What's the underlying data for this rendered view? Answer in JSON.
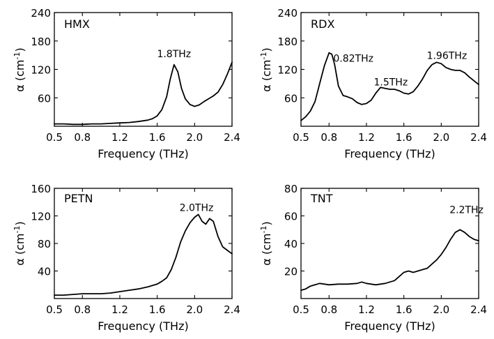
{
  "chart_data": [
    {
      "type": "line",
      "label": "HMX",
      "xlabel": "Frequency (THz)",
      "ylabel_main": "α (cm",
      "ylabel_exp": "-1",
      "ylabel_close": ")",
      "xlim": [
        0.5,
        2.4
      ],
      "ylim": [
        0,
        240
      ],
      "xticks": [
        0.5,
        0.8,
        1.2,
        1.6,
        2.0,
        2.4
      ],
      "xtick_labels": [
        "0.5",
        "0.8",
        "1.2",
        "1.6",
        "2.0",
        "2.4"
      ],
      "yticks": [
        60,
        120,
        180,
        240
      ],
      "ytick_labels": [
        "60",
        "120",
        "180",
        "240"
      ],
      "annotations": [
        {
          "text": "1.8THz",
          "x": 1.78,
          "y": 146
        }
      ],
      "x": [
        0.5,
        0.6,
        0.7,
        0.8,
        0.9,
        1.0,
        1.1,
        1.2,
        1.3,
        1.4,
        1.5,
        1.55,
        1.6,
        1.65,
        1.7,
        1.74,
        1.78,
        1.82,
        1.86,
        1.9,
        1.95,
        2.0,
        2.05,
        2.1,
        2.15,
        2.2,
        2.25,
        2.3,
        2.35,
        2.4
      ],
      "values": [
        5,
        5,
        4,
        4,
        5,
        5,
        6,
        7,
        8,
        10,
        13,
        16,
        22,
        35,
        62,
        100,
        130,
        115,
        80,
        58,
        46,
        42,
        45,
        52,
        58,
        64,
        72,
        88,
        110,
        135
      ]
    },
    {
      "type": "line",
      "label": "RDX",
      "xlabel": "Frequency (THz)",
      "ylabel_main": "α (cm",
      "ylabel_exp": "-1",
      "ylabel_close": ")",
      "xlim": [
        0.5,
        2.4
      ],
      "ylim": [
        0,
        240
      ],
      "xticks": [
        0.5,
        0.8,
        1.2,
        1.6,
        2.0,
        2.4
      ],
      "xtick_labels": [
        "0.5",
        "0.8",
        "1.2",
        "1.6",
        "2.0",
        "2.4"
      ],
      "yticks": [
        60,
        120,
        180,
        240
      ],
      "ytick_labels": [
        "60",
        "120",
        "180",
        "240"
      ],
      "annotations": [
        {
          "text": "0.82THz",
          "x": 1.06,
          "y": 136
        },
        {
          "text": "1.5THz",
          "x": 1.46,
          "y": 86
        },
        {
          "text": "1.96THz",
          "x": 2.06,
          "y": 142
        }
      ],
      "x": [
        0.5,
        0.55,
        0.6,
        0.65,
        0.7,
        0.75,
        0.8,
        0.83,
        0.86,
        0.9,
        0.95,
        1.0,
        1.05,
        1.1,
        1.15,
        1.2,
        1.25,
        1.3,
        1.35,
        1.4,
        1.45,
        1.5,
        1.55,
        1.6,
        1.65,
        1.7,
        1.75,
        1.8,
        1.85,
        1.9,
        1.95,
        2.0,
        2.05,
        2.1,
        2.15,
        2.2,
        2.25,
        2.3,
        2.35,
        2.4
      ],
      "values": [
        12,
        20,
        32,
        52,
        90,
        128,
        155,
        152,
        130,
        85,
        65,
        62,
        58,
        50,
        46,
        48,
        55,
        70,
        82,
        80,
        78,
        78,
        75,
        70,
        68,
        73,
        85,
        100,
        118,
        130,
        135,
        132,
        124,
        120,
        118,
        118,
        113,
        104,
        96,
        88
      ]
    },
    {
      "type": "line",
      "label": "PETN",
      "xlabel": "Frequency (THz)",
      "ylabel_main": "α (cm",
      "ylabel_exp": "-1",
      "ylabel_close": ")",
      "xlim": [
        0.5,
        2.4
      ],
      "ylim": [
        0,
        160
      ],
      "xticks": [
        0.5,
        0.8,
        1.2,
        1.6,
        2.0,
        2.4
      ],
      "xtick_labels": [
        "0.5",
        "0.8",
        "1.2",
        "1.6",
        "2.0",
        "2.4"
      ],
      "yticks": [
        40,
        80,
        120,
        160
      ],
      "ytick_labels": [
        "40",
        "80",
        "120",
        "160"
      ],
      "annotations": [
        {
          "text": "2.0THz",
          "x": 2.02,
          "y": 127
        }
      ],
      "x": [
        0.5,
        0.6,
        0.7,
        0.8,
        0.9,
        1.0,
        1.1,
        1.2,
        1.3,
        1.4,
        1.5,
        1.6,
        1.65,
        1.7,
        1.75,
        1.8,
        1.85,
        1.9,
        1.95,
        2.0,
        2.04,
        2.08,
        2.12,
        2.16,
        2.2,
        2.25,
        2.3,
        2.35,
        2.4
      ],
      "values": [
        5,
        5,
        6,
        7,
        7,
        7,
        8,
        10,
        12,
        14,
        17,
        21,
        25,
        30,
        42,
        60,
        82,
        98,
        110,
        118,
        122,
        112,
        108,
        116,
        112,
        90,
        75,
        70,
        65
      ]
    },
    {
      "type": "line",
      "label": "TNT",
      "xlabel": "Frequency (THz)",
      "ylabel_main": "α (cm",
      "ylabel_exp": "-1",
      "ylabel_close": ")",
      "xlim": [
        0.5,
        2.4
      ],
      "ylim": [
        0,
        80
      ],
      "xticks": [
        0.5,
        0.8,
        1.2,
        1.6,
        2.0,
        2.4
      ],
      "xtick_labels": [
        "0.5",
        "0.8",
        "1.2",
        "1.6",
        "2.0",
        "2.4"
      ],
      "yticks": [
        20,
        40,
        60,
        80
      ],
      "ytick_labels": [
        "20",
        "40",
        "60",
        "80"
      ],
      "annotations": [
        {
          "text": "2.2THz",
          "x": 2.27,
          "y": 62
        }
      ],
      "x": [
        0.5,
        0.55,
        0.6,
        0.65,
        0.7,
        0.8,
        0.9,
        1.0,
        1.1,
        1.15,
        1.2,
        1.3,
        1.4,
        1.5,
        1.55,
        1.6,
        1.65,
        1.7,
        1.75,
        1.8,
        1.85,
        1.9,
        1.95,
        2.0,
        2.05,
        2.1,
        2.15,
        2.2,
        2.25,
        2.3,
        2.35,
        2.4
      ],
      "values": [
        6,
        7,
        9,
        10,
        11,
        10,
        10.5,
        10.5,
        11,
        12,
        11,
        10,
        11,
        13,
        16,
        19,
        20,
        19,
        20,
        21,
        22,
        25,
        28,
        32,
        37,
        43,
        48,
        50,
        48,
        45,
        43,
        42
      ]
    }
  ]
}
